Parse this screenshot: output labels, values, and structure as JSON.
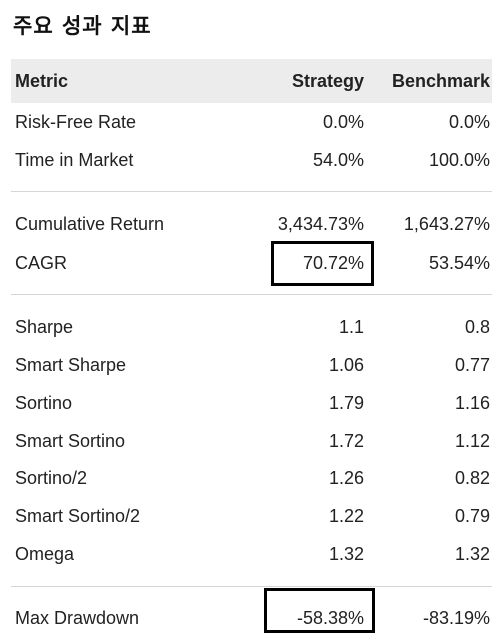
{
  "title": "주요 성과 지표",
  "header": {
    "metric": "Metric",
    "strategy": "Strategy",
    "benchmark": "Benchmark"
  },
  "rows": [
    {
      "metric": "Risk-Free Rate",
      "strategy": "0.0%",
      "benchmark": "0.0%"
    },
    {
      "metric": "Time in Market",
      "strategy": "54.0%",
      "benchmark": "100.0%"
    },
    {
      "metric": "Cumulative Return",
      "strategy": "3,434.73%",
      "benchmark": "1,643.27%"
    },
    {
      "metric": "CAGR",
      "strategy": "70.72%",
      "benchmark": "53.54%"
    },
    {
      "metric": "Sharpe",
      "strategy": "1.1",
      "benchmark": "0.8"
    },
    {
      "metric": "Smart Sharpe",
      "strategy": "1.06",
      "benchmark": "0.77"
    },
    {
      "metric": "Sortino",
      "strategy": "1.79",
      "benchmark": "1.16"
    },
    {
      "metric": "Smart Sortino",
      "strategy": "1.72",
      "benchmark": "1.12"
    },
    {
      "metric": "Sortino/2",
      "strategy": "1.26",
      "benchmark": "0.82"
    },
    {
      "metric": "Smart Sortino/2",
      "strategy": "1.22",
      "benchmark": "0.79"
    },
    {
      "metric": "Omega",
      "strategy": "1.32",
      "benchmark": "1.32"
    },
    {
      "metric": "Max Drawdown",
      "strategy": "-58.38%",
      "benchmark": "-83.19%"
    }
  ]
}
